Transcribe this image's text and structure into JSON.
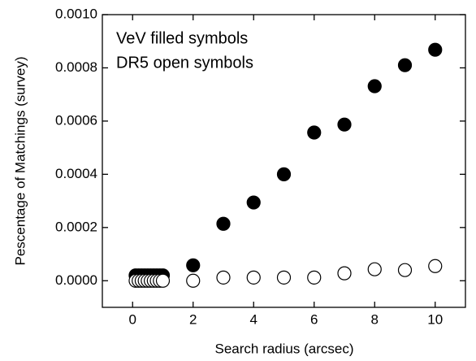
{
  "chart_data": {
    "type": "scatter",
    "xlabel": "Search radius (arcsec)",
    "ylabel": "Pescentage of Matchings (survey)",
    "xlim": [
      -1,
      11
    ],
    "xticks": [
      0,
      2,
      4,
      6,
      8,
      10
    ],
    "ylim": [
      -0.0001,
      0.001
    ],
    "yticks": [
      {
        "value": 0,
        "label": "0.0000"
      },
      {
        "value": 0.0002,
        "label": "0.0002"
      },
      {
        "value": 0.0004,
        "label": "0.0004"
      },
      {
        "value": 0.0006,
        "label": "0.0006"
      },
      {
        "value": 0.0008,
        "label": "0.0008"
      },
      {
        "value": 0.001,
        "label": "0.0010"
      }
    ],
    "series": [
      {
        "name": "VeV filled symbols",
        "color": "#000000",
        "filled": true,
        "x": [
          0.1,
          0.2,
          0.3,
          0.4,
          0.5,
          0.6,
          0.7,
          0.8,
          0.9,
          1.0,
          2,
          3,
          4,
          5,
          6,
          7,
          8,
          9,
          10
        ],
        "values": [
          2e-05,
          2e-05,
          2e-05,
          2e-05,
          2e-05,
          2e-05,
          2e-05,
          2e-05,
          2e-05,
          2e-05,
          5.8e-05,
          0.000214,
          0.000294,
          0.0004,
          0.000557,
          0.000587,
          0.000731,
          0.00081,
          0.000868
        ]
      },
      {
        "name": "DR5 open symbols",
        "color": "#000000",
        "filled": false,
        "x": [
          0.1,
          0.2,
          0.3,
          0.4,
          0.5,
          0.6,
          0.7,
          0.8,
          0.9,
          1.0,
          2,
          3,
          4,
          5,
          6,
          7,
          8,
          9,
          10
        ],
        "values": [
          0,
          0,
          0,
          0,
          0,
          0,
          0,
          0,
          0,
          0,
          0,
          1.2e-05,
          1.2e-05,
          1.2e-05,
          1.2e-05,
          2.8e-05,
          4.3e-05,
          4e-05,
          5.5e-05
        ]
      }
    ]
  }
}
